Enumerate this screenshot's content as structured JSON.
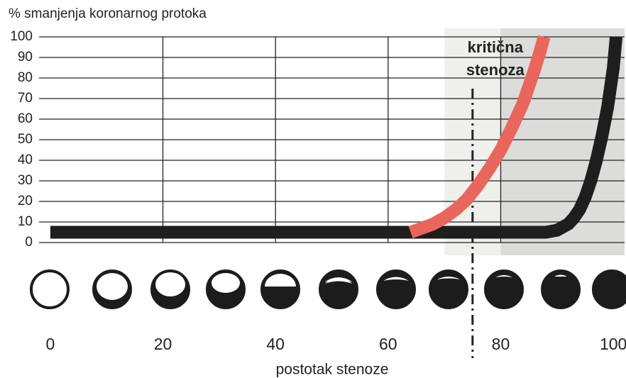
{
  "chart_data": {
    "type": "line",
    "ylabel": "% smanjenja koronarnog protoka",
    "xlabel": "postotak stenoze",
    "xlim": [
      -2,
      102
    ],
    "ylim": [
      0,
      100
    ],
    "xticks": [
      0,
      20,
      40,
      60,
      80,
      100
    ],
    "yticks": [
      0,
      10,
      20,
      30,
      40,
      50,
      60,
      70,
      80,
      90,
      100
    ],
    "grid": true,
    "shaded": [
      {
        "from": 70,
        "to": 80,
        "color": "#efefec"
      },
      {
        "from": 80,
        "to": 102,
        "color": "#dcdcda"
      }
    ],
    "annotation": {
      "lines": [
        "kritična",
        "stenoza"
      ],
      "x": 75
    },
    "series": [
      {
        "color": "#1e1e1e",
        "x": [
          0,
          80,
          88,
          90,
          92,
          93,
          94,
          95,
          96,
          97,
          98,
          99,
          100,
          100.5
        ],
        "values": [
          5,
          5,
          5,
          6,
          9,
          12,
          16,
          22,
          30,
          40,
          52,
          66,
          85,
          100
        ]
      },
      {
        "color": "#e8665c",
        "x": [
          64,
          66,
          68,
          70,
          72,
          74,
          76,
          78,
          80,
          82,
          84,
          85,
          86,
          87,
          87.7
        ],
        "values": [
          5,
          7,
          9,
          12,
          16,
          21,
          28,
          36,
          45,
          56,
          68,
          76,
          84,
          93,
          100
        ]
      }
    ]
  }
}
